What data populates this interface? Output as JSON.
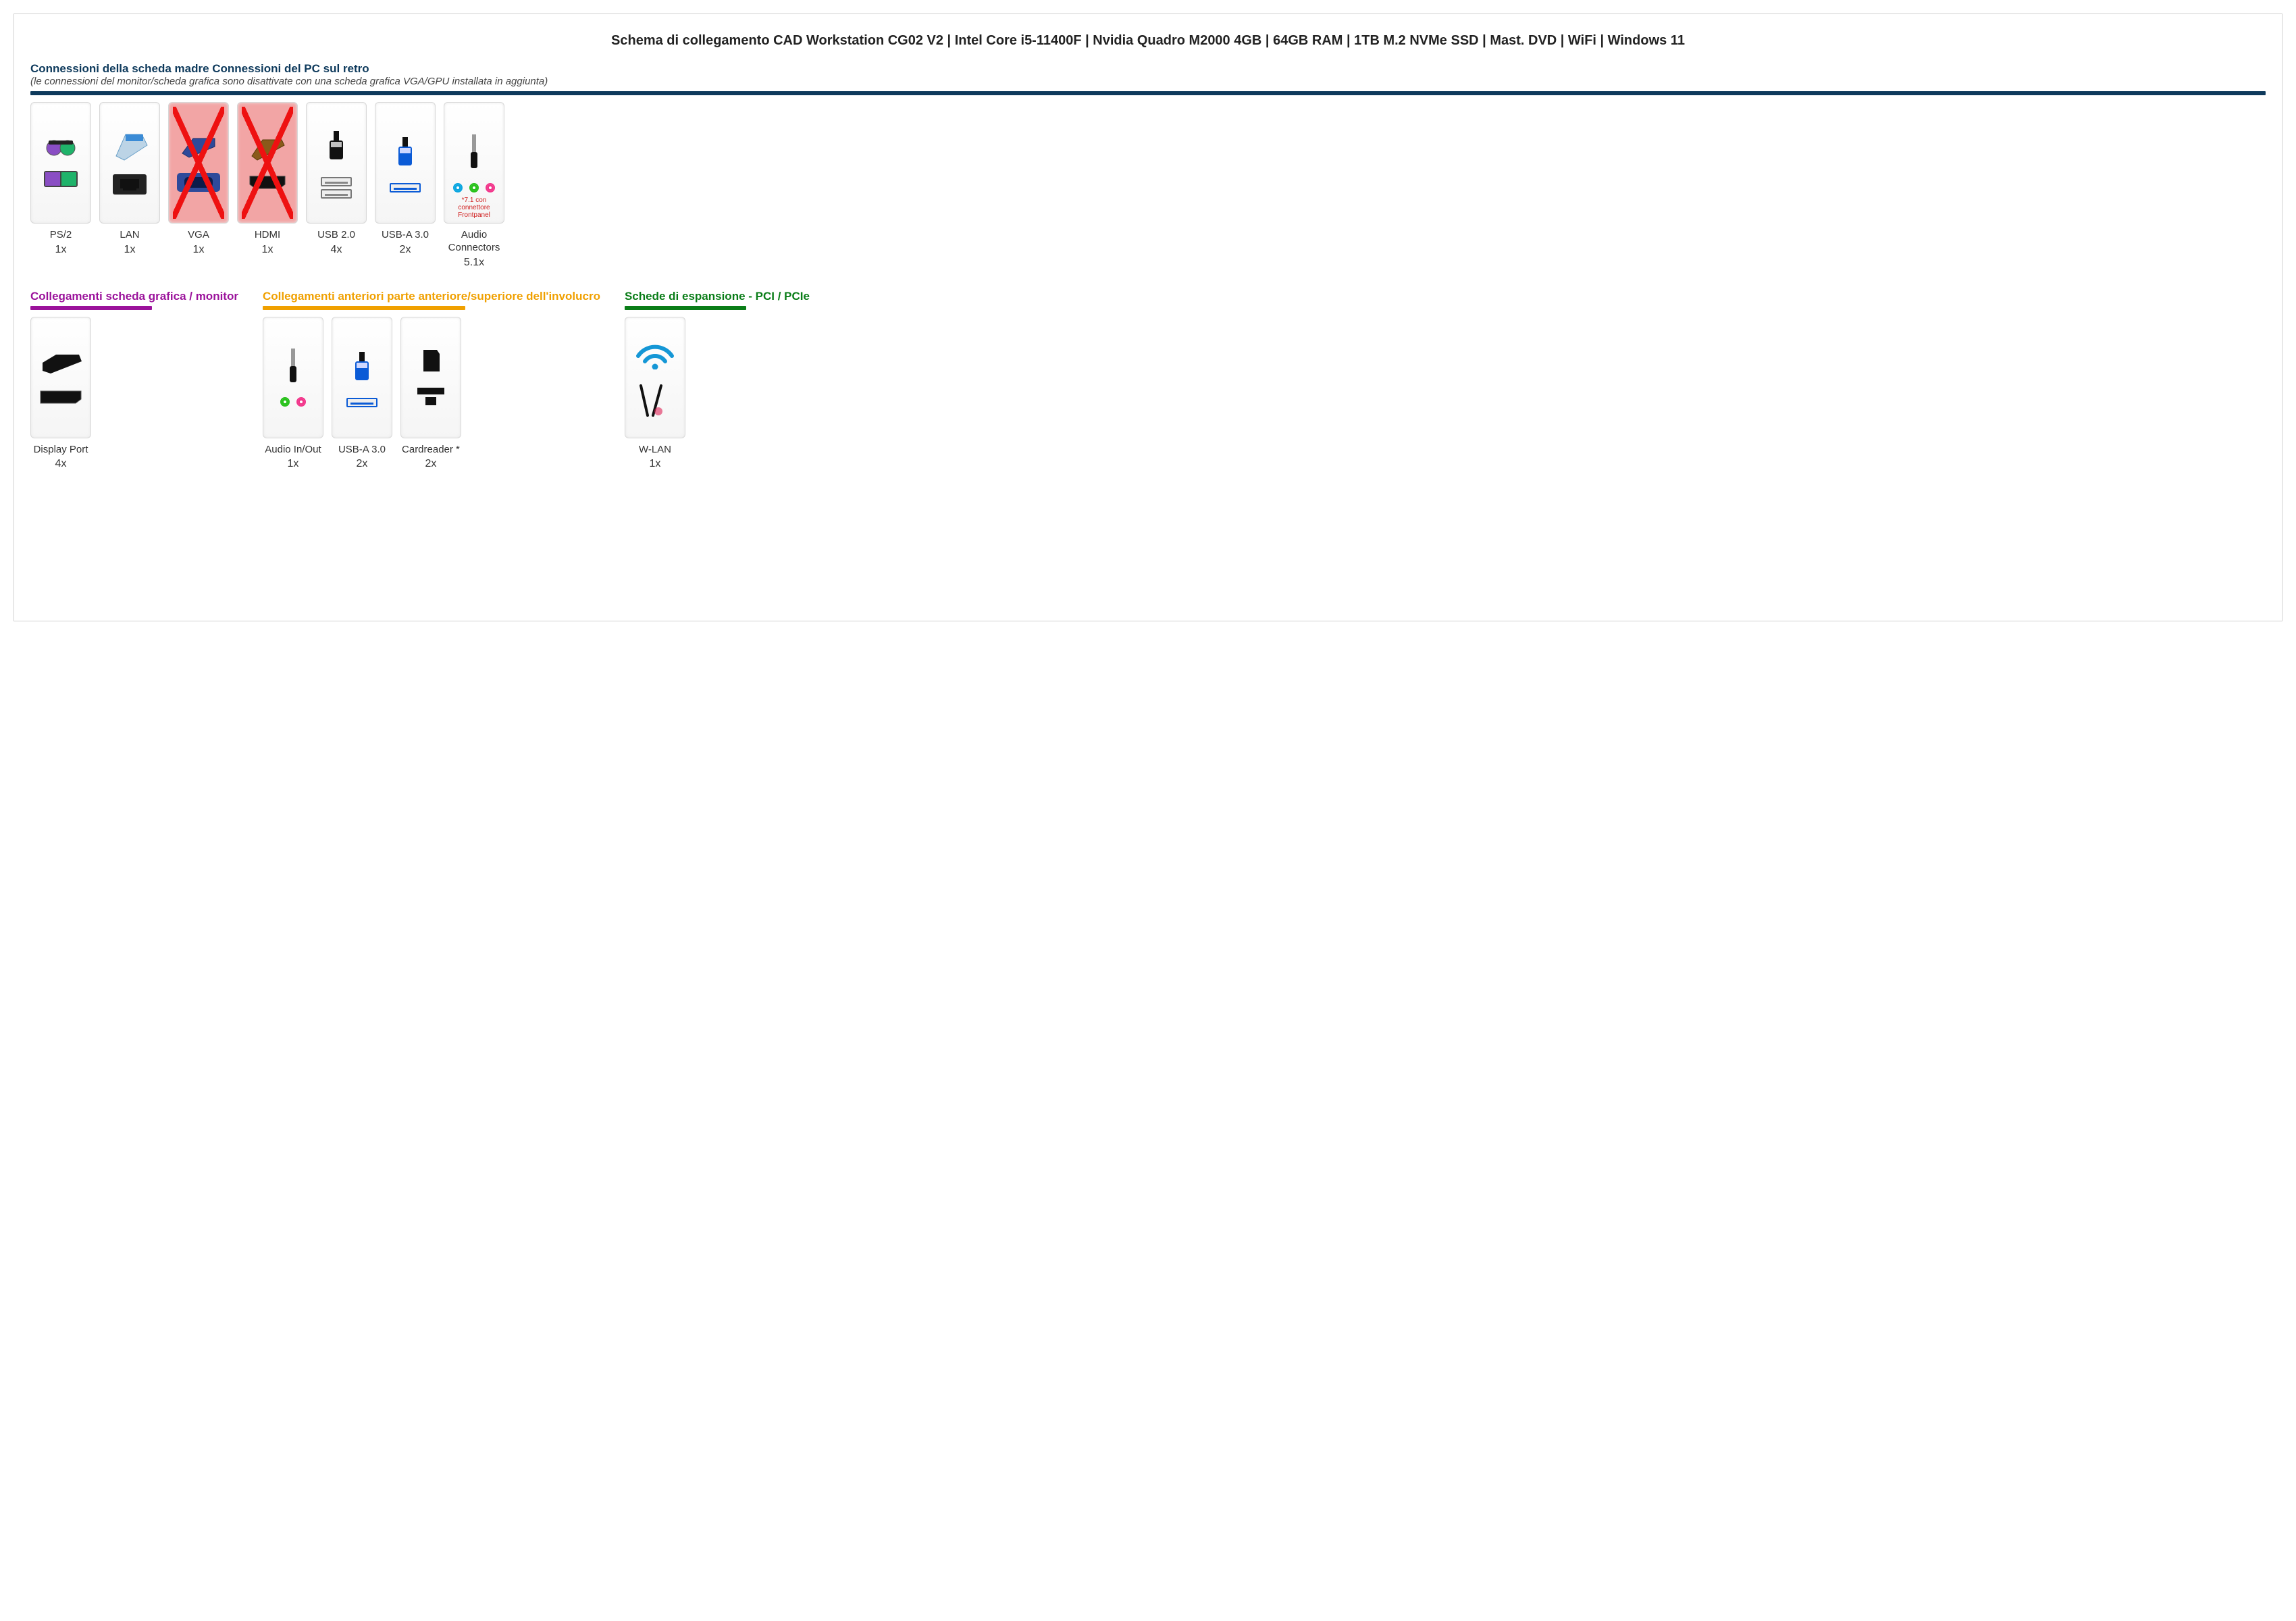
{
  "title": "Schema di collegamento CAD Workstation CG02 V2 | Intel Core i5-11400F | Nvidia Quadro M2000 4GB | 64GB RAM | 1TB M.2 NVMe SSD | Mast. DVD | WiFi | Windows 11",
  "colors": {
    "rule_rear": "#0e3a5c",
    "rule_gpu": "#9b129b",
    "rule_front": "#f0a000",
    "rule_pci": "#0a7d18",
    "head_rear": "#0e3a5c",
    "head_gpu": "#9b129b",
    "head_front": "#f0a000",
    "head_pci": "#0a7d18",
    "usb3_blue": "#0b5bd6",
    "audio_blue": "#0aa6e0",
    "audio_green": "#27c11a",
    "audio_pink": "#f2368b",
    "ps2_purple": "#8a4ec4",
    "ps2_green": "#1fb36a",
    "wifi_blue": "#1597d6",
    "disabled_bg": "#f2a5a5",
    "note_red": "#d02020"
  },
  "sections": {
    "rear": {
      "heading": "Connessioni della scheda madre Connessioni del PC sul retro",
      "note": "(le connessioni del monitor/scheda grafica sono disattivate con una scheda grafica VGA/GPU installata in aggiunta)",
      "items": [
        {
          "id": "ps2",
          "label": "PS/2",
          "count": "1x",
          "icon": "ps2",
          "disabled": false
        },
        {
          "id": "lan",
          "label": "LAN",
          "count": "1x",
          "icon": "lan",
          "disabled": false
        },
        {
          "id": "vga",
          "label": "VGA",
          "count": "1x",
          "icon": "vga",
          "disabled": true
        },
        {
          "id": "hdmi",
          "label": "HDMI",
          "count": "1x",
          "icon": "hdmi",
          "disabled": true
        },
        {
          "id": "usb2",
          "label": "USB 2.0",
          "count": "4x",
          "icon": "usb2",
          "disabled": false
        },
        {
          "id": "usb3",
          "label": "USB-A 3.0",
          "count": "2x",
          "icon": "usb3",
          "disabled": false
        },
        {
          "id": "audio",
          "label": "Audio Connectors",
          "count": "5.1x",
          "icon": "audio3",
          "disabled": false,
          "extra_note": "*7.1 con connettore Frontpanel"
        }
      ]
    },
    "gpu": {
      "heading": "Collegamenti scheda grafica / monitor",
      "items": [
        {
          "id": "dp",
          "label": "Display Port",
          "count": "4x",
          "icon": "dp",
          "disabled": false
        }
      ]
    },
    "front": {
      "heading": "Collegamenti anteriori parte anteriore/superiore dell'involucro",
      "items": [
        {
          "id": "audio_f",
          "label": "Audio In/Out",
          "count": "1x",
          "icon": "audio2",
          "disabled": false
        },
        {
          "id": "usb3_f",
          "label": "USB-A 3.0",
          "count": "2x",
          "icon": "usb3",
          "disabled": false
        },
        {
          "id": "card",
          "label": "Cardreader *",
          "count": "2x",
          "icon": "card",
          "disabled": false
        }
      ]
    },
    "pci": {
      "heading": "Schede di espansione - PCI / PCIe",
      "items": [
        {
          "id": "wlan",
          "label": "W-LAN",
          "count": "1x",
          "icon": "wlan",
          "disabled": false
        }
      ]
    }
  }
}
